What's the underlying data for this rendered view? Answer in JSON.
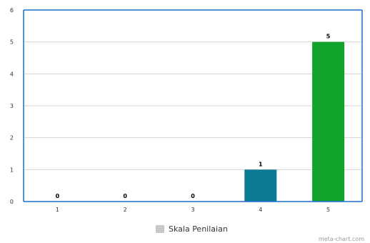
{
  "chart_data": {
    "type": "bar",
    "title": "",
    "categories": [
      "1",
      "2",
      "3",
      "4",
      "5"
    ],
    "values": [
      0,
      0,
      0,
      1,
      5
    ],
    "bar_colors": [
      "#0c7a93",
      "#0c7a93",
      "#0c7a93",
      "#0c7a93",
      "#11a32b"
    ],
    "ylim": [
      0,
      6
    ],
    "yticks": [
      0,
      1,
      2,
      3,
      4,
      5,
      6
    ],
    "grid": true,
    "legend": {
      "label": "Skala Penilaian",
      "color": "#c8c8c8",
      "position": "bottom"
    }
  },
  "watermark": "meta-chart.com"
}
